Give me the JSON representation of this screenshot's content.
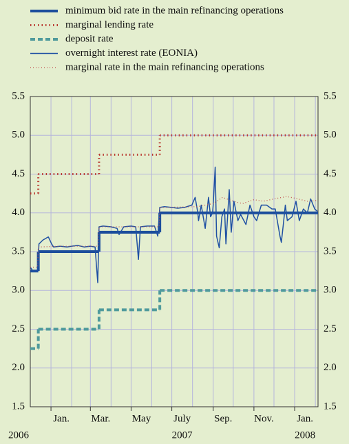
{
  "chart_data": {
    "type": "line",
    "xlim": [
      "2006-12-01",
      "2008-02-05"
    ],
    "ylim": [
      1.5,
      5.5
    ],
    "yticks": [
      {
        "value": 1.5,
        "label": "1.5"
      },
      {
        "value": 2,
        "label": "2.0"
      },
      {
        "value": 2.5,
        "label": "2.5"
      },
      {
        "value": 3,
        "label": "3.0"
      },
      {
        "value": 3.5,
        "label": "3.5"
      },
      {
        "value": 4,
        "label": "4.0"
      },
      {
        "value": 4.5,
        "label": "4.5"
      },
      {
        "value": 5,
        "label": "5.0"
      },
      {
        "value": 5.5,
        "label": "5.5"
      }
    ],
    "xticks": [
      {
        "value": "2007-01",
        "label": "Jan."
      },
      {
        "value": "2007-03",
        "label": "Mar."
      },
      {
        "value": "2007-05",
        "label": "May"
      },
      {
        "value": "2007-07",
        "label": "July"
      },
      {
        "value": "2007-09",
        "label": "Sep."
      },
      {
        "value": "2007-11",
        "label": "Nov."
      },
      {
        "value": "2008-01",
        "label": "Jan."
      }
    ],
    "xgrid": [
      "2007-01",
      "2007-02",
      "2007-03",
      "2007-04",
      "2007-05",
      "2007-06",
      "2007-07",
      "2007-08",
      "2007-09",
      "2007-10",
      "2007-11",
      "2007-12",
      "2008-01",
      "2008-02"
    ],
    "year_labels": [
      {
        "value": "2006-12",
        "label": "2006"
      },
      {
        "value": "2007-07",
        "label": "2007"
      },
      {
        "value": "2008-01",
        "label": "2008"
      }
    ],
    "grid": true,
    "series": [
      {
        "name": "minimum bid rate in the main refinancing operations",
        "color": "#1c4d9c",
        "style": "thick",
        "step": true,
        "x": [
          "2006-12-01",
          "2006-12-13",
          "2007-03-14",
          "2007-06-13"
        ],
        "values": [
          3.25,
          3.5,
          3.75,
          4.0
        ]
      },
      {
        "name": "marginal lending rate",
        "color": "#b8362e",
        "style": "dotted",
        "step": true,
        "x": [
          "2006-12-01",
          "2006-12-13",
          "2007-03-14",
          "2007-06-13"
        ],
        "values": [
          4.25,
          4.5,
          4.75,
          5.0
        ]
      },
      {
        "name": "deposit rate",
        "color": "#4f9a9c",
        "style": "dashed",
        "step": true,
        "x": [
          "2006-12-01",
          "2006-12-13",
          "2007-03-14",
          "2007-06-13"
        ],
        "values": [
          2.25,
          2.5,
          2.75,
          3.0
        ]
      },
      {
        "name": "overnight interest rate (EONIA)",
        "color": "#1f50a3",
        "style": "thin",
        "x": [
          "2006-12-01",
          "2006-12-05",
          "2006-12-12",
          "2006-12-14",
          "2006-12-20",
          "2006-12-28",
          "2007-01-02",
          "2007-01-05",
          "2007-01-15",
          "2007-01-25",
          "2007-02-01",
          "2007-02-10",
          "2007-02-20",
          "2007-03-01",
          "2007-03-08",
          "2007-03-12",
          "2007-03-14",
          "2007-03-20",
          "2007-04-01",
          "2007-04-10",
          "2007-04-13",
          "2007-04-20",
          "2007-05-01",
          "2007-05-08",
          "2007-05-12",
          "2007-05-15",
          "2007-05-25",
          "2007-06-05",
          "2007-06-10",
          "2007-06-13",
          "2007-06-20",
          "2007-07-01",
          "2007-07-10",
          "2007-07-20",
          "2007-07-31",
          "2007-08-05",
          "2007-08-09",
          "2007-08-10",
          "2007-08-14",
          "2007-08-20",
          "2007-08-25",
          "2007-08-28",
          "2007-08-31",
          "2007-09-01",
          "2007-09-04",
          "2007-09-06",
          "2007-09-10",
          "2007-09-14",
          "2007-09-18",
          "2007-09-20",
          "2007-09-25",
          "2007-09-28",
          "2007-10-02",
          "2007-10-08",
          "2007-10-12",
          "2007-10-20",
          "2007-10-26",
          "2007-11-01",
          "2007-11-05",
          "2007-11-12",
          "2007-11-20",
          "2007-11-28",
          "2007-12-03",
          "2007-12-10",
          "2007-12-12",
          "2007-12-15",
          "2007-12-18",
          "2007-12-21",
          "2007-12-28",
          "2008-01-03",
          "2008-01-08",
          "2008-01-14",
          "2008-01-20",
          "2008-01-25",
          "2008-01-31",
          "2008-02-04"
        ],
        "values": [
          3.3,
          3.25,
          3.25,
          3.6,
          3.65,
          3.69,
          3.6,
          3.56,
          3.57,
          3.56,
          3.57,
          3.58,
          3.56,
          3.57,
          3.56,
          3.1,
          3.82,
          3.83,
          3.82,
          3.8,
          3.72,
          3.82,
          3.83,
          3.82,
          3.4,
          3.82,
          3.83,
          3.83,
          3.7,
          4.07,
          4.08,
          4.07,
          4.06,
          4.07,
          4.1,
          4.2,
          4.0,
          3.9,
          4.1,
          3.8,
          4.2,
          3.95,
          4.0,
          4.1,
          4.59,
          3.7,
          3.55,
          3.95,
          4.05,
          3.6,
          4.3,
          3.75,
          4.15,
          3.9,
          3.98,
          3.85,
          4.1,
          3.95,
          3.9,
          4.1,
          4.1,
          4.05,
          4.05,
          3.7,
          3.62,
          3.85,
          4.1,
          3.9,
          3.95,
          4.15,
          3.9,
          4.05,
          4.0,
          4.18,
          4.05,
          4.02
        ]
      },
      {
        "name": "marginal rate in the main refinancing operations",
        "color": "#c0504d",
        "style": "finedot",
        "x": [
          "2006-12-01",
          "2006-12-12",
          "2006-12-13",
          "2007-01-15",
          "2007-03-13",
          "2007-03-14",
          "2007-06-12",
          "2007-06-13",
          "2007-08-08",
          "2007-08-20",
          "2007-09-01",
          "2007-09-15",
          "2007-10-01",
          "2007-10-15",
          "2007-11-01",
          "2007-11-15",
          "2007-12-01",
          "2007-12-20",
          "2008-01-01",
          "2008-01-20",
          "2008-02-04"
        ],
        "values": [
          3.3,
          3.3,
          3.56,
          3.57,
          3.57,
          3.82,
          3.82,
          4.07,
          4.08,
          4.1,
          4.12,
          4.2,
          4.15,
          4.12,
          4.17,
          4.15,
          4.18,
          4.21,
          4.19,
          4.15,
          4.16
        ]
      }
    ]
  }
}
